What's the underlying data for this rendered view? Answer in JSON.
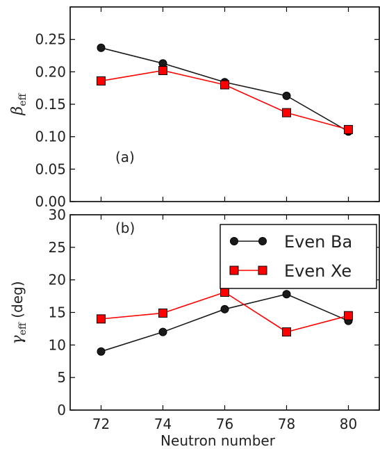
{
  "chart_data": [
    {
      "type": "line",
      "panel_label": "(a)",
      "ylabel": "β",
      "ylabel_sub": "eff",
      "xlabel": "",
      "ylim": [
        0.0,
        0.3
      ],
      "yticks": [
        "0.00",
        "0.05",
        "0.10",
        "0.15",
        "0.20",
        "0.25"
      ],
      "ytick_values": [
        0.0,
        0.05,
        0.1,
        0.15,
        0.2,
        0.25
      ],
      "x": [
        72,
        74,
        76,
        78,
        80
      ],
      "xlim": [
        71,
        81
      ],
      "xticks": [
        "72",
        "74",
        "76",
        "78",
        "80"
      ],
      "show_xticklabels": false,
      "series": [
        {
          "name": "Even Ba",
          "marker": "circle",
          "color": "#1a1a1a",
          "values": [
            0.237,
            0.213,
            0.184,
            0.163,
            0.108
          ]
        },
        {
          "name": "Even Xe",
          "marker": "square",
          "color": "#ff0000",
          "values": [
            0.186,
            0.202,
            0.18,
            0.137,
            0.111
          ]
        }
      ]
    },
    {
      "type": "line",
      "panel_label": "(b)",
      "ylabel": "γ",
      "ylabel_sub": "eff",
      "ylabel_suffix": " (deg)",
      "xlabel": "Neutron number",
      "ylim": [
        0,
        30
      ],
      "yticks": [
        "0",
        "5",
        "10",
        "15",
        "20",
        "25",
        "30"
      ],
      "ytick_values": [
        0,
        5,
        10,
        15,
        20,
        25,
        30
      ],
      "x": [
        72,
        74,
        76,
        78,
        80
      ],
      "xlim": [
        71,
        81
      ],
      "xticks": [
        "72",
        "74",
        "76",
        "78",
        "80"
      ],
      "show_xticklabels": true,
      "legend": {
        "position": "upper-right",
        "entries": [
          "Even Ba",
          "Even Xe"
        ]
      },
      "series": [
        {
          "name": "Even Ba",
          "marker": "circle",
          "color": "#1a1a1a",
          "values": [
            9.0,
            12.0,
            15.5,
            17.8,
            13.7
          ]
        },
        {
          "name": "Even Xe",
          "marker": "square",
          "color": "#ff0000",
          "values": [
            14.0,
            14.9,
            18.1,
            12.0,
            14.5
          ]
        }
      ]
    }
  ]
}
